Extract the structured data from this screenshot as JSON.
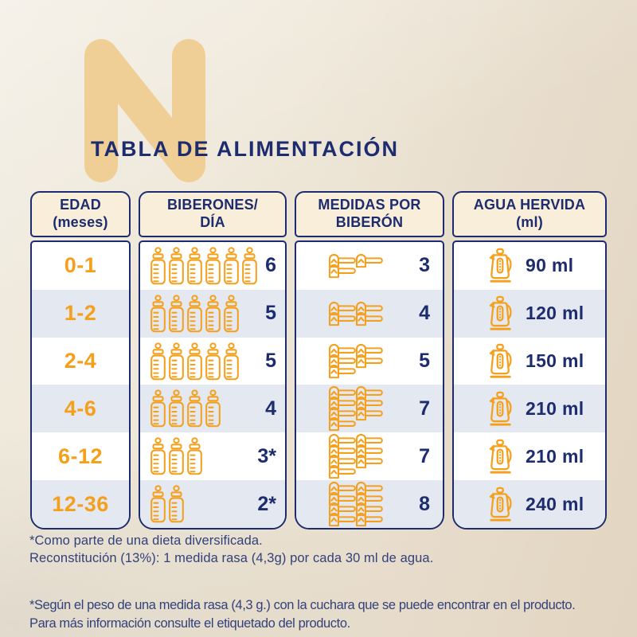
{
  "brand": {
    "watermark_letter": "N"
  },
  "title": "TABLA DE ALIMENTACIÓN",
  "table": {
    "headers": [
      {
        "line1": "EDAD",
        "line2": "(meses)"
      },
      {
        "line1": "BIBERONES/",
        "line2": "DÍA"
      },
      {
        "line1": "MEDIDAS POR",
        "line2": "BIBERÓN"
      },
      {
        "line1": "AGUA HERVIDA",
        "line2": "(ml)"
      }
    ],
    "rows": [
      {
        "edad": "0-1",
        "biberones_count": 6,
        "biberones_label": "6",
        "medidas_count": 3,
        "medidas_label": "3",
        "agua_label": "90 ml"
      },
      {
        "edad": "1-2",
        "biberones_count": 5,
        "biberones_label": "5",
        "medidas_count": 4,
        "medidas_label": "4",
        "agua_label": "120 ml"
      },
      {
        "edad": "2-4",
        "biberones_count": 5,
        "biberones_label": "5",
        "medidas_count": 5,
        "medidas_label": "5",
        "agua_label": "150 ml"
      },
      {
        "edad": "4-6",
        "biberones_count": 4,
        "biberones_label": "4",
        "medidas_count": 7,
        "medidas_label": "7",
        "agua_label": "210 ml"
      },
      {
        "edad": "6-12",
        "biberones_count": 3,
        "biberones_label": "3*",
        "medidas_count": 7,
        "medidas_label": "7",
        "agua_label": "210 ml"
      },
      {
        "edad": "12-36",
        "biberones_count": 2,
        "biberones_label": "2*",
        "medidas_count": 8,
        "medidas_label": "8",
        "agua_label": "240 ml"
      }
    ]
  },
  "footnotes": {
    "note1_line1": "*Como parte de una dieta diversificada.",
    "note1_line2": "Reconstitución (13%): 1 medida rasa (4,3g) por cada 30 ml de agua.",
    "note2_line1": "*Según el peso de una medida rasa (4,3 g.) con la cuchara que se puede encontrar en el producto.",
    "note2_line2": "Para más información consulte el etiquetado del producto."
  },
  "icons": {
    "bottle": "baby-bottle-icon",
    "scoop": "measuring-scoop-icon",
    "kettle": "kettle-icon"
  },
  "colors": {
    "navy": "#1d2c6e",
    "orange": "#f5a01d",
    "header_fill": "#f8eed9",
    "alt_row_fill": "#e4e8f1",
    "watermark": "#f0cf97",
    "footnote": "#33417a"
  },
  "chart_data": {
    "type": "table",
    "title": "TABLA DE ALIMENTACIÓN",
    "columns": [
      "EDAD (meses)",
      "BIBERONES/DÍA",
      "MEDIDAS POR BIBERÓN",
      "AGUA HERVIDA (ml)"
    ],
    "rows": [
      [
        "0-1",
        "6",
        "3",
        "90 ml"
      ],
      [
        "1-2",
        "5",
        "4",
        "120 ml"
      ],
      [
        "2-4",
        "5",
        "5",
        "150 ml"
      ],
      [
        "4-6",
        "4",
        "7",
        "210 ml"
      ],
      [
        "6-12",
        "3*",
        "7",
        "210 ml"
      ],
      [
        "12-36",
        "2*",
        "8",
        "240 ml"
      ]
    ],
    "footnotes": [
      "*Como parte de una dieta diversificada. Reconstitución (13%): 1 medida rasa (4,3g) por cada 30 ml de agua.",
      "*Según el peso de una medida rasa (4,3 g.) con la cuchara que se puede encontrar en el producto. Para más información consulte el etiquetado del producto."
    ],
    "legend_position": "none",
    "grid": false
  }
}
